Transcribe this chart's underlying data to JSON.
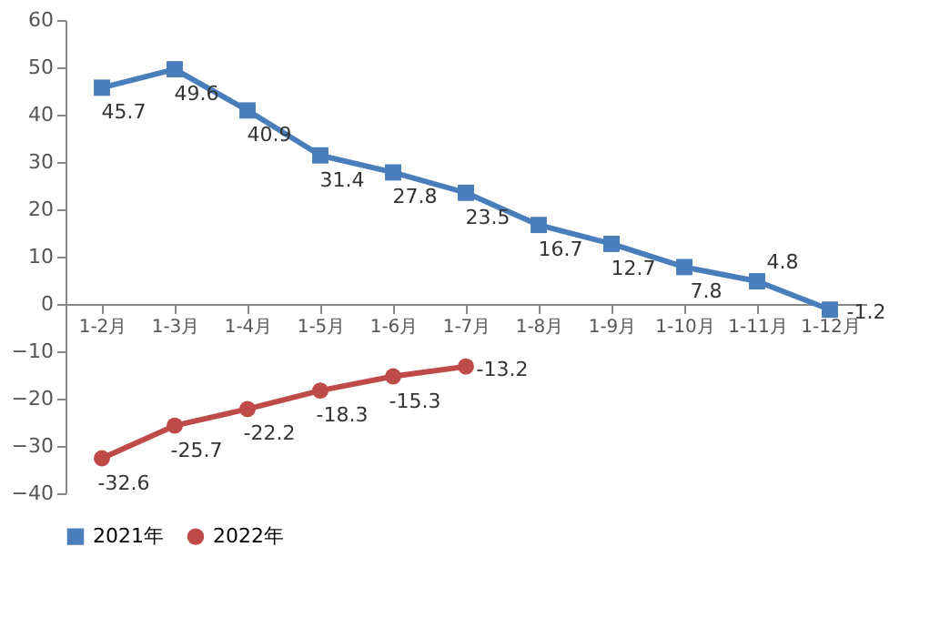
{
  "chart_data": {
    "type": "line",
    "categories": [
      "1-2月",
      "1-3月",
      "1-4月",
      "1-5月",
      "1-6月",
      "1-7月",
      "1-8月",
      "1-9月",
      "1-10月",
      "1-11月",
      "1-12月"
    ],
    "series": [
      {
        "name": "2021年",
        "color": "#4a7ebb",
        "marker": "square",
        "values": [
          45.7,
          49.6,
          40.9,
          31.4,
          27.8,
          23.5,
          16.7,
          12.7,
          7.8,
          4.8,
          -1.2
        ]
      },
      {
        "name": "2022年",
        "color": "#be4b48",
        "marker": "circle",
        "values": [
          -32.6,
          -25.7,
          -22.2,
          -18.3,
          -15.3,
          -13.2,
          null,
          null,
          null,
          null,
          null
        ]
      }
    ],
    "ylim": [
      -40,
      60
    ],
    "yticks": [
      -40,
      -30,
      -20,
      -10,
      0,
      10,
      20,
      30,
      40,
      50,
      60
    ],
    "grid": false,
    "legend": "bottom",
    "data_labels": true,
    "line_style": "solid"
  }
}
